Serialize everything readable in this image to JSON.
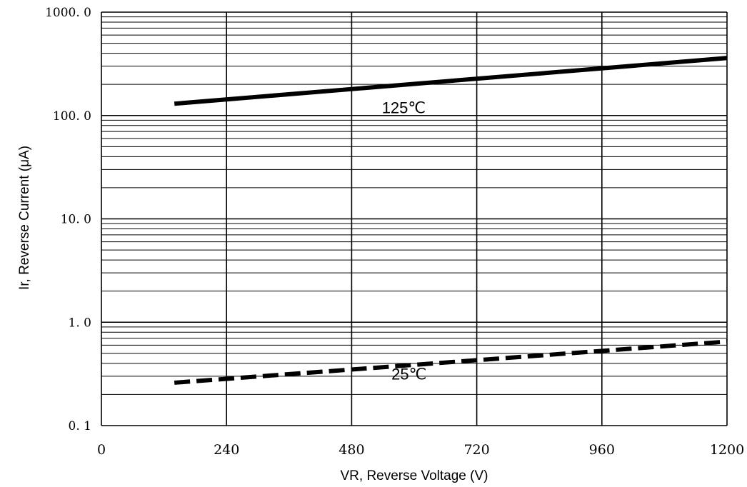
{
  "chart_data": {
    "type": "line",
    "title": "",
    "xlabel": "VR, Reverse Voltage (V)",
    "ylabel": "Ir, Reverse Current (μA)",
    "xlim": [
      0,
      1200
    ],
    "ylim": [
      0.1,
      1000
    ],
    "yscale": "log",
    "grid": true,
    "x_ticks": [
      0,
      240,
      480,
      720,
      960,
      1200
    ],
    "x_tick_labels": [
      "0",
      "240",
      "480",
      "720",
      "960",
      "1200"
    ],
    "y_ticks": [
      0.1,
      1,
      10,
      100,
      1000
    ],
    "y_tick_labels": [
      "0. 1",
      "1. 0",
      "10. 0",
      "100. 0",
      "1000. 0"
    ],
    "series": [
      {
        "style": "solid",
        "x": [
          140,
          1200
        ],
        "y": [
          130,
          360
        ],
        "annotation": "125℃",
        "annotation_at": [
          580,
          105
        ]
      },
      {
        "style": "dashed",
        "x": [
          140,
          1200
        ],
        "y": [
          0.26,
          0.65
        ],
        "annotation": "25℃",
        "annotation_at": [
          590,
          0.28
        ]
      }
    ]
  }
}
